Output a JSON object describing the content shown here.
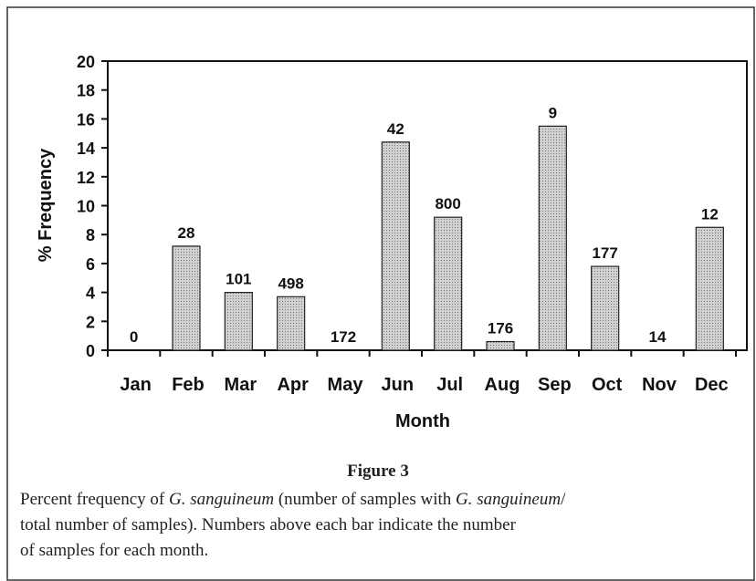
{
  "chart_data": {
    "type": "bar",
    "categories": [
      "Jan",
      "Feb",
      "Mar",
      "Apr",
      "May",
      "Jun",
      "Jul",
      "Aug",
      "Sep",
      "Oct",
      "Nov",
      "Dec"
    ],
    "values": [
      0,
      7.2,
      4.0,
      3.7,
      0,
      14.4,
      9.2,
      0.6,
      15.5,
      5.8,
      0,
      8.5
    ],
    "sample_counts": [
      0,
      28,
      101,
      498,
      172,
      42,
      800,
      176,
      9,
      177,
      14,
      12
    ],
    "color": "#b8b8b8",
    "ylim": [
      0,
      20
    ],
    "yticks": [
      0,
      2,
      4,
      6,
      8,
      10,
      12,
      14,
      16,
      18,
      20
    ],
    "xlabel": "Month",
    "ylabel": "% Frequency"
  },
  "caption": {
    "title": "Figure 3",
    "lines": [
      [
        {
          "text": "Percent frequency of ",
          "italic": false
        },
        {
          "text": "G. sanguineum",
          "italic": true
        },
        {
          "text": " (number of samples with ",
          "italic": false
        },
        {
          "text": "G. sanguineum",
          "italic": true
        },
        {
          "text": "/",
          "italic": false
        }
      ],
      [
        {
          "text": "total number of samples). Numbers above each bar indicate the number",
          "italic": false
        }
      ],
      [
        {
          "text": "of samples for each month.",
          "italic": false
        }
      ]
    ]
  }
}
